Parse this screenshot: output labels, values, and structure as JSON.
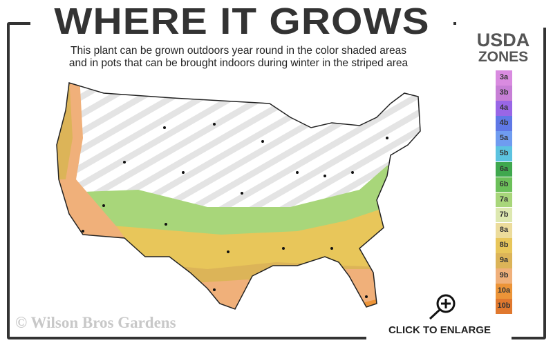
{
  "header": {
    "title": "WHERE IT GROWS",
    "subtitle_line1": "This plant can be grown outdoors year round in the color shaded areas",
    "subtitle_line2": "and in pots that can be brought indoors during winter in the striped area"
  },
  "legend": {
    "title_line1": "USDA",
    "title_line2": "ZONES",
    "zones": [
      {
        "label": "3a",
        "color": "#d98be0"
      },
      {
        "label": "3b",
        "color": "#c77fd6"
      },
      {
        "label": "4a",
        "color": "#9966e6"
      },
      {
        "label": "4b",
        "color": "#5f78e6"
      },
      {
        "label": "5a",
        "color": "#6f9cf0"
      },
      {
        "label": "5b",
        "color": "#5cc3e0"
      },
      {
        "label": "6a",
        "color": "#3fa84e"
      },
      {
        "label": "6b",
        "color": "#6cc05a"
      },
      {
        "label": "7a",
        "color": "#a8d67a"
      },
      {
        "label": "7b",
        "color": "#dde8b0"
      },
      {
        "label": "8a",
        "color": "#ecdc9c"
      },
      {
        "label": "8b",
        "color": "#e8c65a"
      },
      {
        "label": "9a",
        "color": "#dcb458"
      },
      {
        "label": "9b",
        "color": "#f0b07a"
      },
      {
        "label": "10a",
        "color": "#ec9438"
      },
      {
        "label": "10b",
        "color": "#e0782e"
      }
    ]
  },
  "footer": {
    "copyright": "© Wilson Bros Gardens",
    "enlarge_label": "CLICK TO ENLARGE"
  }
}
